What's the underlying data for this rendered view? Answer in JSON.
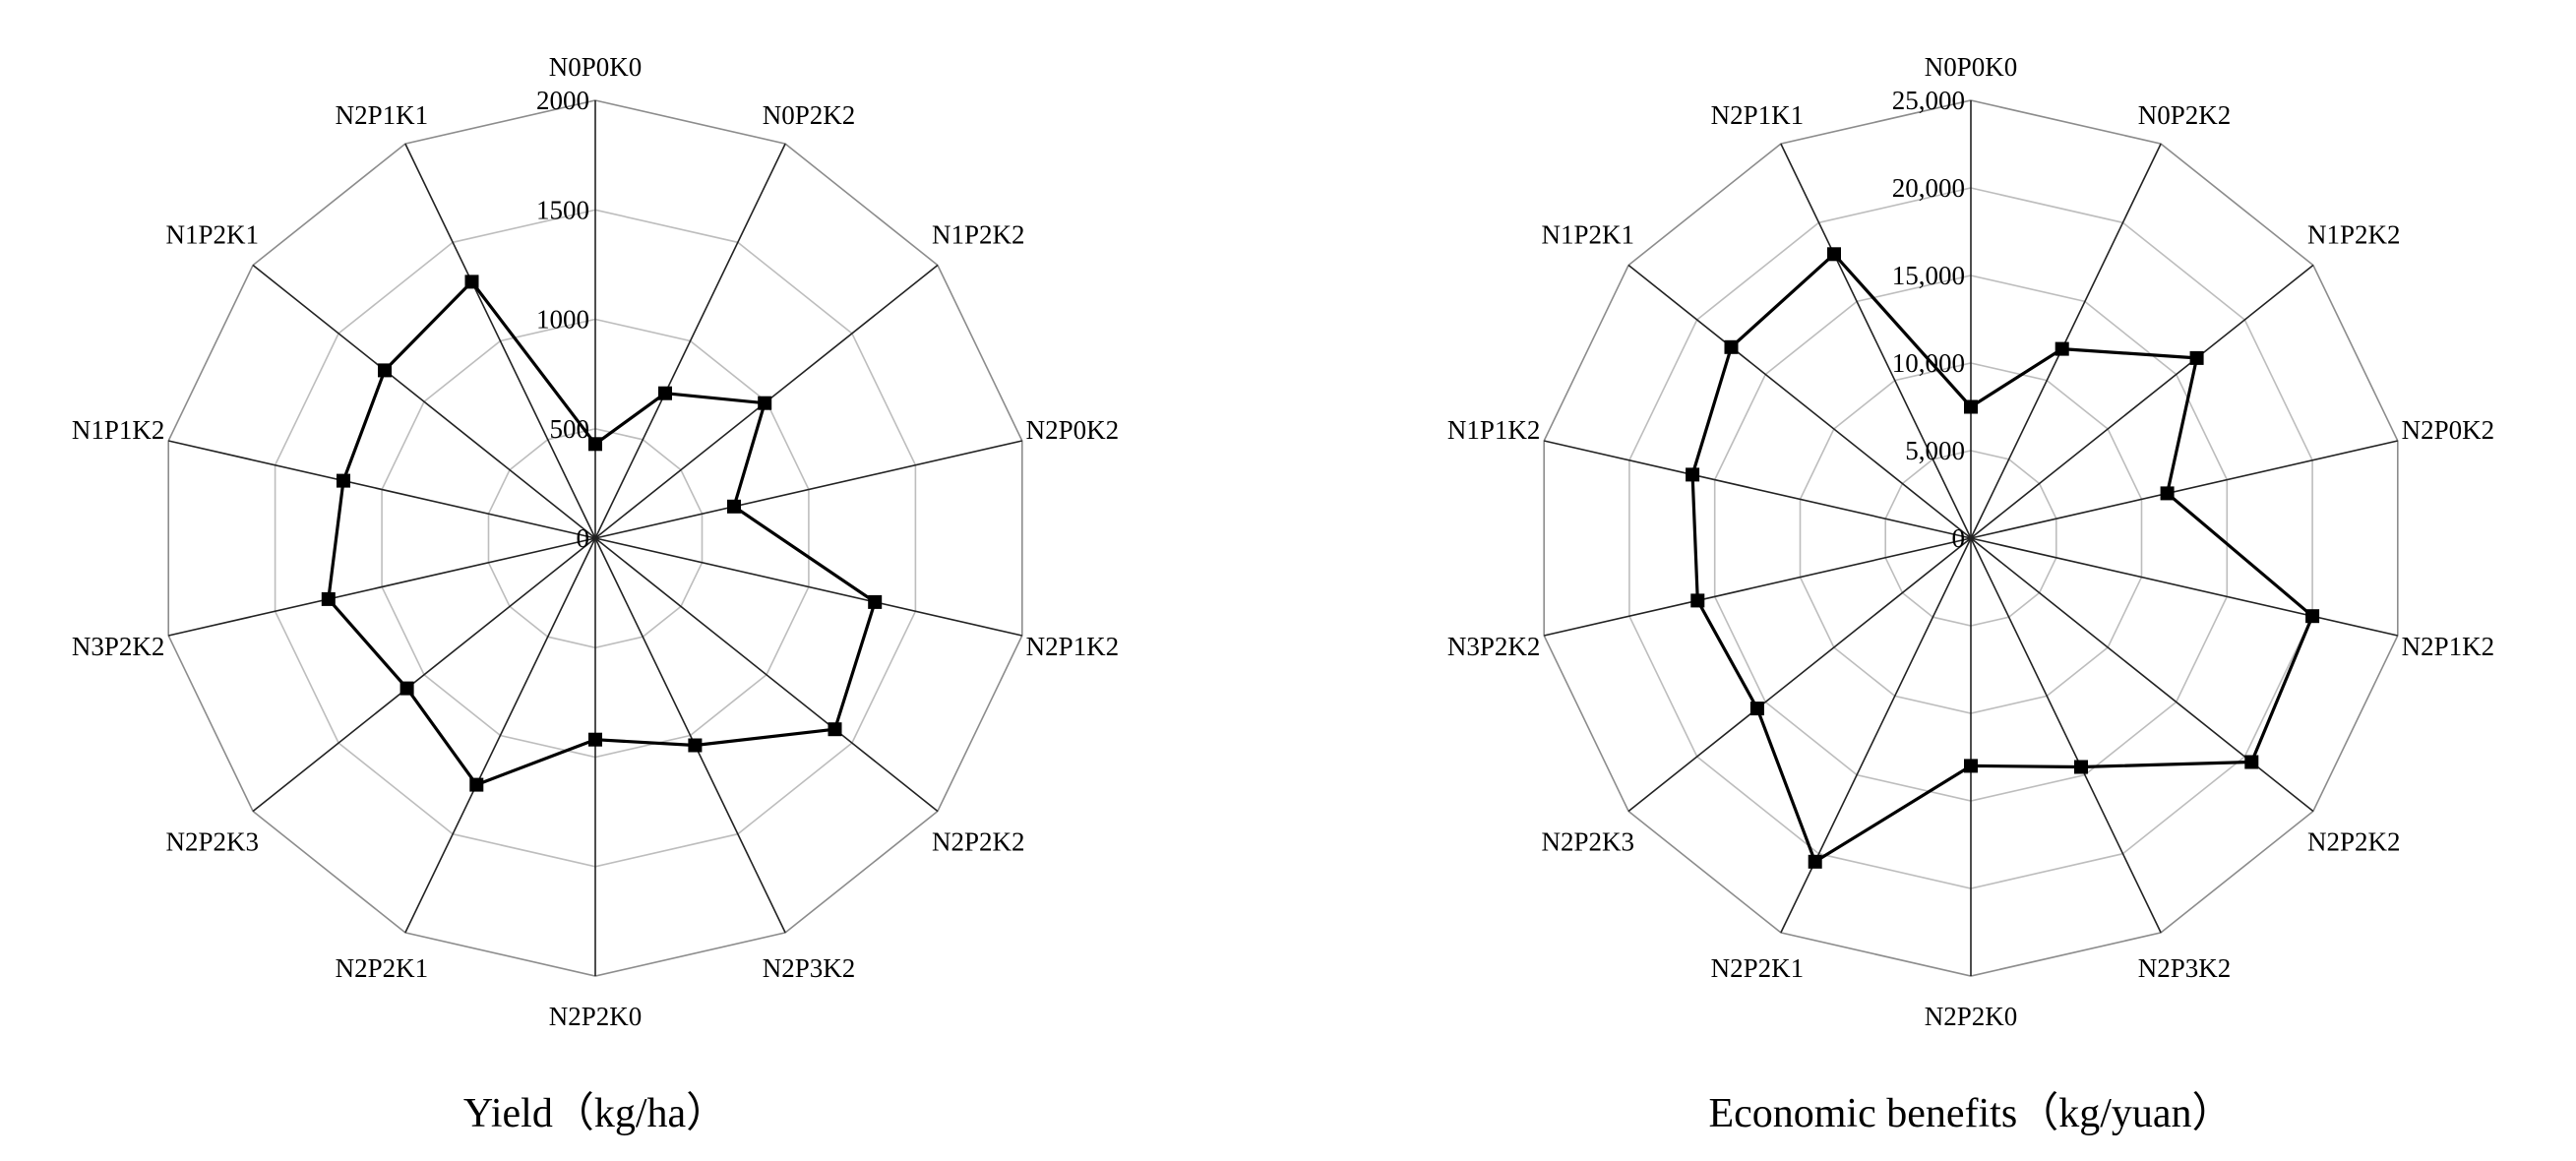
{
  "chart_data": [
    {
      "type": "radar",
      "title": "Yield（kg/ha）",
      "categories": [
        "N0P0K0",
        "N0P2K2",
        "N1P2K2",
        "N2P0K2",
        "N2P1K2",
        "N2P2K2",
        "N2P3K2",
        "N2P2K0",
        "N2P2K1",
        "N2P2K3",
        "N3P2K2",
        "N1P1K2",
        "N1P2K1",
        "N2P1K1"
      ],
      "values": [
        430,
        735,
        990,
        650,
        1310,
        1400,
        1050,
        920,
        1250,
        1100,
        1250,
        1180,
        1230,
        1300
      ],
      "rlim": [
        0,
        2000
      ],
      "rticks": [
        0,
        500,
        1000,
        1500,
        2000
      ],
      "tick_labels": [
        "0",
        "500",
        "1000",
        "1500",
        "2000"
      ],
      "grid": true
    },
    {
      "type": "radar",
      "title": "Economic benefits（kg/yuan）",
      "categories": [
        "N0P0K0",
        "N0P2K2",
        "N1P2K2",
        "N2P0K2",
        "N2P1K2",
        "N2P2K2",
        "N2P3K2",
        "N2P2K0",
        "N2P2K1",
        "N2P2K3",
        "N3P2K2",
        "N1P1K2",
        "N1P2K1",
        "N2P1K1"
      ],
      "values": [
        7500,
        12000,
        16500,
        11500,
        20000,
        20500,
        14500,
        13000,
        20500,
        15600,
        16000,
        16300,
        17500,
        18000
      ],
      "rlim": [
        0,
        25000
      ],
      "rticks": [
        0,
        5000,
        10000,
        15000,
        20000,
        25000
      ],
      "tick_labels": [
        "0",
        "5,000",
        "10,000",
        "15,000",
        "20,000",
        "25,000"
      ],
      "grid": true
    }
  ]
}
